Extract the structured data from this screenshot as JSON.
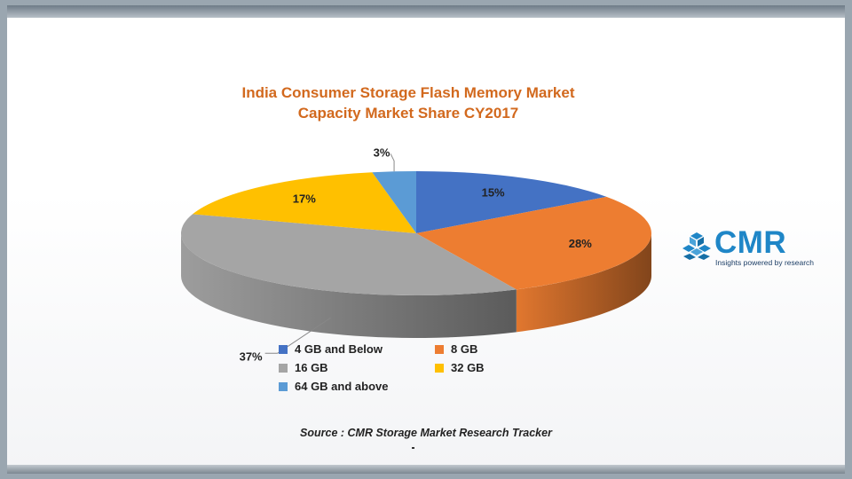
{
  "chart_data": {
    "type": "pie",
    "title_line1": "India Consumer Storage Flash Memory Market",
    "title_line2": "Capacity Market Share CY2017",
    "categories": [
      "4 GB and Below",
      "8 GB",
      "16 GB",
      "32 GB",
      "64 GB and above"
    ],
    "values": [
      15,
      28,
      37,
      17,
      3
    ],
    "data_labels": [
      "15%",
      "28%",
      "37%",
      "17%",
      "3%"
    ],
    "colors": [
      "#4472c4",
      "#ed7d31",
      "#a5a5a5",
      "#ffc000",
      "#5b9bd5"
    ],
    "legend_position": "bottom",
    "style": "3d"
  },
  "legend": [
    {
      "label": "4 GB and Below",
      "color": "#4472c4"
    },
    {
      "label": "8 GB",
      "color": "#ed7d31"
    },
    {
      "label": "16 GB",
      "color": "#a5a5a5"
    },
    {
      "label": "32 GB",
      "color": "#ffc000"
    },
    {
      "label": "64 GB and above",
      "color": "#5b9bd5"
    }
  ],
  "source": "Source : CMR Storage Market Research Tracker",
  "logo": {
    "name": "CMR",
    "tagline": "Insights powered by research"
  }
}
